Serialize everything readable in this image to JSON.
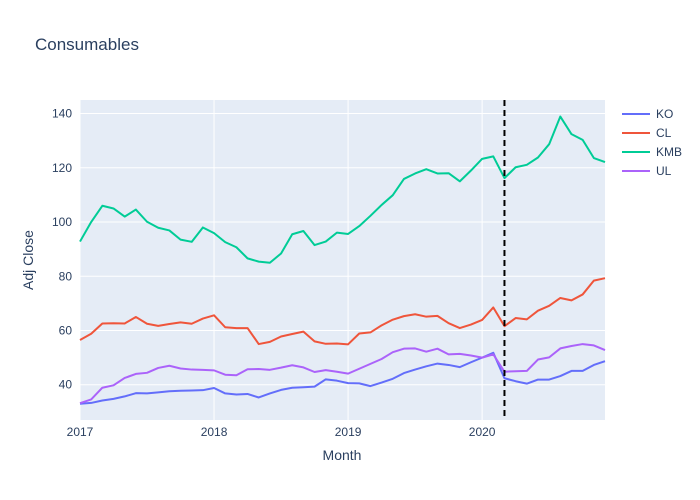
{
  "chart_data": {
    "type": "line",
    "title": "Consumables",
    "xlabel": "Month",
    "ylabel": "Adj Close",
    "x_start": "2017-01",
    "x_end": "2020-12",
    "xlim": [
      "2017-01",
      "2020-12"
    ],
    "ylim": [
      27,
      145
    ],
    "x_ticks": [
      "2017",
      "2018",
      "2019",
      "2020"
    ],
    "y_ticks": [
      40,
      60,
      80,
      100,
      120,
      140
    ],
    "vline": {
      "x": "2020-03",
      "style": "dashed",
      "color": "#000000"
    },
    "legend_position": "top-right",
    "grid": true,
    "series": [
      {
        "name": "KO",
        "color": "#636efa",
        "values": [
          33.0,
          33.3,
          34.2,
          34.8,
          35.7,
          36.9,
          36.8,
          37.2,
          37.6,
          37.8,
          37.9,
          38.0,
          38.8,
          36.8,
          36.4,
          36.6,
          35.3,
          36.8,
          38.1,
          38.9,
          39.1,
          39.3,
          42.0,
          41.5,
          40.6,
          40.5,
          39.5,
          40.8,
          42.2,
          44.3,
          45.6,
          46.8,
          47.8,
          47.3,
          46.5,
          48.3,
          50.0,
          51.8,
          42.4,
          41.3,
          40.4,
          41.9,
          41.9,
          43.2,
          45.1,
          45.1,
          47.3,
          48.7
        ]
      },
      {
        "name": "CL",
        "color": "#ef553b",
        "values": [
          56.5,
          58.8,
          62.6,
          62.7,
          62.6,
          65.0,
          62.5,
          61.7,
          62.4,
          63.0,
          62.5,
          64.4,
          65.6,
          61.2,
          60.9,
          60.9,
          55.0,
          55.8,
          57.8,
          58.7,
          59.6,
          56.0,
          55.1,
          55.2,
          54.9,
          58.9,
          59.3,
          61.9,
          64.0,
          65.3,
          66.0,
          65.1,
          65.4,
          62.7,
          60.9,
          62.2,
          63.9,
          68.5,
          61.6,
          64.6,
          64.1,
          67.3,
          69.1,
          72.0,
          71.1,
          73.3,
          78.4,
          79.3
        ]
      },
      {
        "name": "KMB",
        "color": "#00cc96",
        "values": [
          92.8,
          100.0,
          106.0,
          105.0,
          102.0,
          104.6,
          100.1,
          97.9,
          96.9,
          93.5,
          92.7,
          98.0,
          95.9,
          92.6,
          90.7,
          86.6,
          85.4,
          85.0,
          88.4,
          95.5,
          96.7,
          91.5,
          92.8,
          96.1,
          95.6,
          98.5,
          102.3,
          106.3,
          109.9,
          115.9,
          117.9,
          119.5,
          117.9,
          118.0,
          115.0,
          119.0,
          123.3,
          124.2,
          116.2,
          120.2,
          121.1,
          123.8,
          128.7,
          138.9,
          132.4,
          130.3,
          123.6,
          122.1
        ]
      },
      {
        "name": "UL",
        "color": "#ab63fa",
        "values": [
          33.2,
          34.6,
          38.9,
          39.8,
          42.5,
          44.0,
          44.4,
          46.2,
          47.0,
          46.0,
          45.6,
          45.5,
          45.3,
          43.7,
          43.5,
          45.7,
          45.8,
          45.5,
          46.3,
          47.2,
          46.4,
          44.7,
          45.4,
          44.8,
          44.1,
          45.9,
          47.7,
          49.5,
          52.0,
          53.3,
          53.4,
          52.2,
          53.3,
          51.2,
          51.4,
          50.8,
          50.0,
          51.2,
          44.8,
          45.0,
          45.1,
          49.3,
          50.1,
          53.4,
          54.3,
          55.0,
          54.5,
          52.8
        ]
      }
    ]
  }
}
